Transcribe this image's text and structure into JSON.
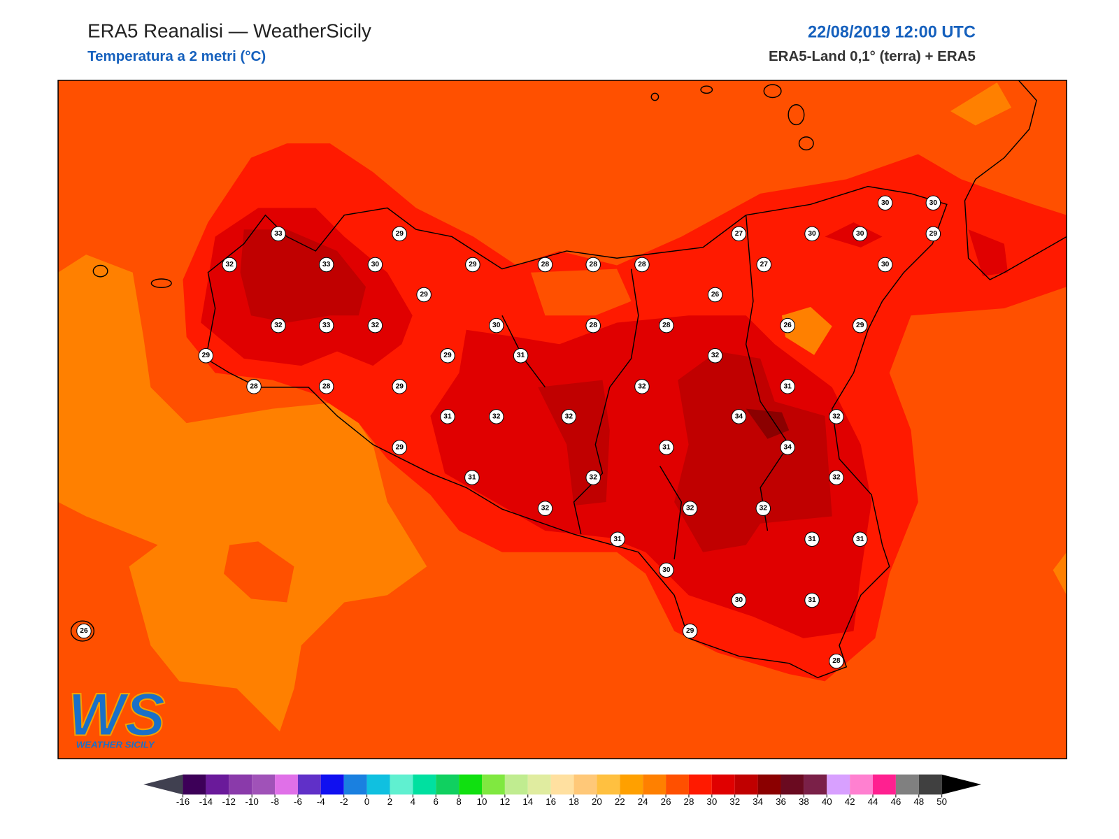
{
  "header": {
    "title": "ERA5 Reanalisi — WeatherSicily",
    "subtitle": "Temperatura a 2 metri (°C)",
    "date": "22/08/2019 12:00 UTC",
    "source": "ERA5-Land 0,1° (terra) + ERA5"
  },
  "stations": {
    "values": [
      33,
      29,
      32,
      33,
      30,
      29,
      28,
      28,
      28,
      27,
      30,
      30,
      29,
      30,
      30,
      27,
      30,
      29,
      26,
      32,
      33,
      32,
      30,
      28,
      28,
      26,
      29,
      29,
      29,
      31,
      32,
      28,
      28,
      29,
      32,
      31,
      31,
      32,
      32,
      34,
      32,
      29,
      31,
      34,
      31,
      32,
      32,
      32,
      32,
      32,
      31,
      31,
      31,
      30,
      30,
      31,
      29,
      28,
      26
    ]
  },
  "colorbar": {
    "ticks": [
      -16,
      -14,
      -12,
      -10,
      -8,
      -6,
      -4,
      -2,
      0,
      2,
      4,
      6,
      8,
      10,
      12,
      14,
      16,
      18,
      20,
      22,
      24,
      26,
      28,
      30,
      32,
      34,
      36,
      38,
      40,
      42,
      44,
      46,
      48,
      50
    ],
    "colors": [
      "#3d0058",
      "#6a1a9a",
      "#8a3aaa",
      "#a052b8",
      "#e070e8",
      "#6030c8",
      "#1010f0",
      "#1a80e0",
      "#10c0e0",
      "#60f0d0",
      "#00e0a0",
      "#10d060",
      "#10e010",
      "#80e840",
      "#c0ec90",
      "#e0eca0",
      "#ffe0a0",
      "#ffc878",
      "#ffc040",
      "#ffa000",
      "#ff8000",
      "#ff5000",
      "#ff1a00",
      "#e00000",
      "#c00000",
      "#8b0000",
      "#6a0a20",
      "#7a2048",
      "#d8a0ff",
      "#ff80d0",
      "#ff2090",
      "#808080",
      "#404040"
    ],
    "under_color": "#404050",
    "over_color": "#000000"
  },
  "logo": {
    "mark": "WS",
    "name": "WEATHER SICILY"
  }
}
